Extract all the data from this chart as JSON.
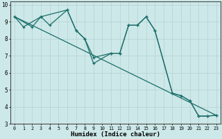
{
  "xlabel": "Humidex (Indice chaleur)",
  "background_color": "#cde8e8",
  "grid_color": "#b8d4d4",
  "line_color": "#1a6e6a",
  "xlim": [
    -0.5,
    23.5
  ],
  "ylim": [
    3,
    10.2
  ],
  "line1_x": [
    0,
    1,
    3,
    6,
    7,
    8,
    9,
    11,
    12,
    13,
    14,
    15,
    16,
    18,
    19,
    20,
    21,
    22,
    23
  ],
  "line1_y": [
    9.3,
    8.7,
    9.3,
    9.7,
    8.5,
    8.0,
    6.9,
    7.15,
    7.15,
    8.8,
    8.8,
    9.3,
    8.5,
    4.8,
    4.65,
    4.35,
    3.45,
    3.45,
    3.5
  ],
  "line2_x": [
    0,
    2,
    3,
    4,
    6,
    7,
    8,
    9,
    11,
    12,
    13,
    14,
    15,
    16,
    18,
    19,
    20,
    21,
    22,
    23
  ],
  "line2_y": [
    9.3,
    8.7,
    9.3,
    8.8,
    9.7,
    8.5,
    8.0,
    6.55,
    7.15,
    7.15,
    8.8,
    8.8,
    9.3,
    8.5,
    4.8,
    4.65,
    4.35,
    3.45,
    3.45,
    3.5
  ],
  "line3_x": [
    0,
    23
  ],
  "line3_y": [
    9.3,
    3.5
  ]
}
